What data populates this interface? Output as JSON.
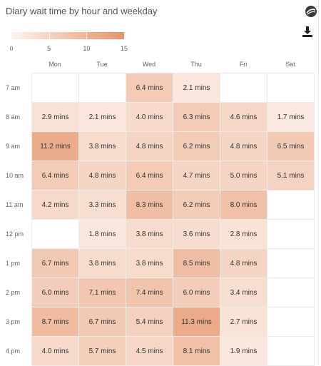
{
  "title": "Diary wait time by hour and weekday",
  "icons": {
    "logo": "sphere-logo-icon",
    "download": "download-icon"
  },
  "chart_data": {
    "type": "heatmap",
    "title": "Diary wait time by hour and weekday",
    "columns": [
      "Mon",
      "Tue",
      "Wed",
      "Thu",
      "Fri",
      "Sat"
    ],
    "rows": [
      "7 am",
      "8 am",
      "9 am",
      "10 am",
      "11 am",
      "12 pm",
      "1 pm",
      "2 pm",
      "3 pm",
      "4 pm"
    ],
    "unit": "mins",
    "color_scale": {
      "min": 0,
      "max": 15,
      "low_color": "#fdf4ef",
      "high_color": "#e5936a",
      "ticks": [
        0,
        5,
        10,
        15
      ]
    },
    "legend_placement": "top-left",
    "values": [
      [
        null,
        null,
        6.4,
        2.1,
        null,
        null
      ],
      [
        2.9,
        2.1,
        4.0,
        6.3,
        4.6,
        1.7
      ],
      [
        11.2,
        3.8,
        4.8,
        6.2,
        4.8,
        6.5
      ],
      [
        6.4,
        4.8,
        6.4,
        4.7,
        5.0,
        5.1
      ],
      [
        4.2,
        3.3,
        8.3,
        6.2,
        8.0,
        null
      ],
      [
        null,
        1.8,
        3.8,
        3.6,
        2.8,
        null
      ],
      [
        6.7,
        3.8,
        3.8,
        8.5,
        4.8,
        null
      ],
      [
        6.0,
        7.1,
        7.4,
        6.0,
        3.4,
        null
      ],
      [
        8.7,
        6.7,
        5.4,
        11.3,
        2.7,
        null
      ],
      [
        4.0,
        5.7,
        4.5,
        8.1,
        1.9,
        null
      ]
    ]
  }
}
